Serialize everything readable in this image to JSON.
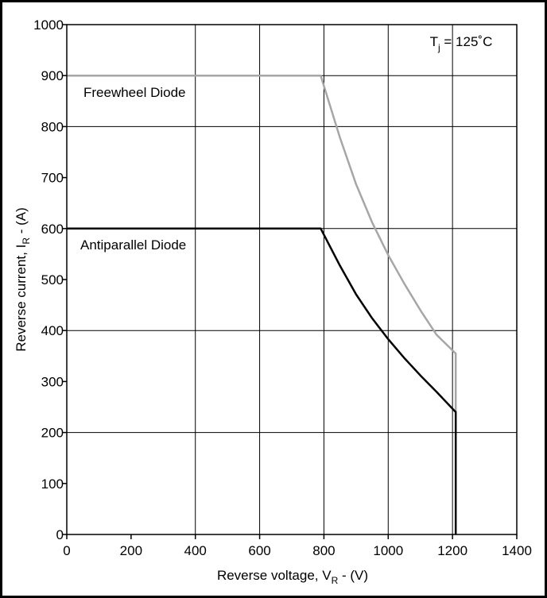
{
  "chart_data": {
    "type": "line",
    "title": "",
    "xlabel": {
      "main": "Reverse voltage, V",
      "sub": "R",
      "suffix": " - (V)"
    },
    "ylabel": {
      "main": "Reverse current, I",
      "sub": "R",
      "suffix": " - (A)"
    },
    "xlim": [
      0,
      1400
    ],
    "ylim": [
      0,
      1000
    ],
    "xticks": [
      0,
      200,
      400,
      600,
      800,
      1000,
      1200,
      1400
    ],
    "yticks": [
      0,
      100,
      200,
      300,
      400,
      500,
      600,
      700,
      800,
      900,
      1000
    ],
    "grid_x": [
      400,
      600,
      800,
      1000,
      1200,
      1400
    ],
    "grid_y": [
      200,
      400,
      600,
      800,
      900,
      1000
    ],
    "condition": {
      "main": "T",
      "sub": "j",
      "suffix": " = 125˚C"
    },
    "series": [
      {
        "name": "Freewheel Diode",
        "color": "#a6a6a6",
        "x": [
          0,
          790,
          850,
          900,
          950,
          1000,
          1050,
          1100,
          1150,
          1210,
          1210
        ],
        "y": [
          900,
          900,
          778,
          687,
          612,
          548,
          492,
          440,
          392,
          355,
          240
        ]
      },
      {
        "name": "Antiparallel Diode",
        "color": "#000000",
        "x": [
          0,
          790,
          850,
          900,
          950,
          1000,
          1050,
          1100,
          1150,
          1210,
          1210
        ],
        "y": [
          600,
          600,
          527,
          471,
          424,
          383,
          346,
          312,
          280,
          240,
          0
        ]
      }
    ]
  }
}
